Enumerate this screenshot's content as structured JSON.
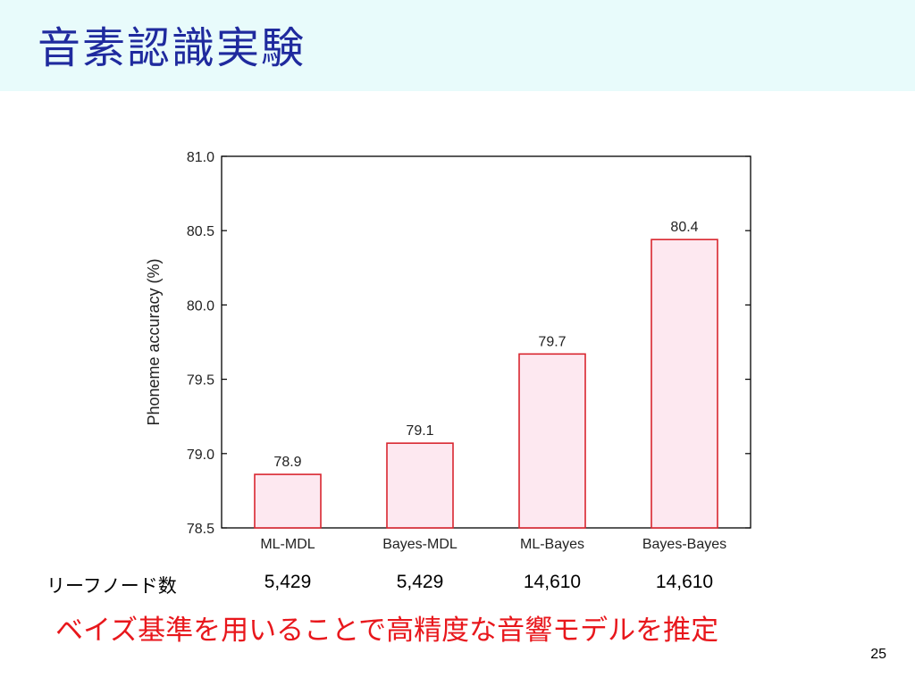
{
  "slide": {
    "title": "音素認識実験",
    "leaf_label": "リーフノード数",
    "leaf_counts": [
      "5,429",
      "5,429",
      "14,610",
      "14,610"
    ],
    "conclusion": "ベイズ基準を用いることで高精度な音響モデルを推定",
    "page_number": "25"
  },
  "colors": {
    "title": "#1f2a9e",
    "title_bar": "#e8fbfb",
    "bar_fill": "#fde8f0",
    "bar_stroke": "#d9262f",
    "conclusion": "#e8171c"
  },
  "chart_data": {
    "type": "bar",
    "categories": [
      "ML-MDL",
      "Bayes-MDL",
      "ML-Bayes",
      "Bayes-Bayes"
    ],
    "values": [
      78.86,
      79.07,
      79.67,
      80.44
    ],
    "data_labels": [
      "78.9",
      "79.1",
      "79.7",
      "80.4"
    ],
    "ylabel": "Phoneme accuracy (%)",
    "xlabel": "",
    "ylim": [
      78.5,
      81.0
    ],
    "yticks": [
      "78.5",
      "79.0",
      "79.5",
      "80.0",
      "80.5",
      "81.0"
    ],
    "grid": false,
    "legend": "none"
  }
}
